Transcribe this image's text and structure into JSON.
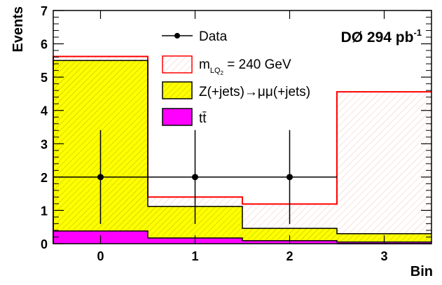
{
  "chart_data": {
    "type": "bar",
    "annotation": {
      "main": "DØ 294 pb",
      "superscript": "-1"
    },
    "xlabel": "Bin",
    "ylabel": "Events",
    "xlim": [
      -0.5,
      3.5
    ],
    "ylim": [
      0,
      7
    ],
    "xticks": [
      "0",
      "1",
      "2",
      "3"
    ],
    "yticks": [
      "0",
      "1",
      "2",
      "3",
      "4",
      "5",
      "6",
      "7"
    ],
    "bins": [
      0,
      1,
      2,
      3
    ],
    "series": [
      {
        "name": "tt̄",
        "values": [
          0.38,
          0.17,
          0.09,
          0.05
        ],
        "color": "#ff00ff"
      },
      {
        "name": "Z(+jets)→μμ(+jets)",
        "values": [
          5.12,
          0.95,
          0.37,
          0.25
        ],
        "color": "#ffff00"
      },
      {
        "name": "m_LQ2 = 240 GeV",
        "values": [
          0.12,
          0.28,
          0.73,
          4.26
        ],
        "color": "#ff0000"
      }
    ],
    "data": {
      "name": "Data",
      "values": [
        2,
        2,
        2,
        0
      ],
      "errors": [
        1.41,
        1.41,
        1.41,
        0
      ]
    },
    "legend": {
      "placement": "top-right",
      "data": "Data",
      "signal_main": "m",
      "signal_sub": "LQ",
      "signal_subsub": "2",
      "signal_rest": " = 240 GeV",
      "zjets": "Z(+jets)→μμ(+jets)",
      "ttbar": "tt̄"
    }
  }
}
